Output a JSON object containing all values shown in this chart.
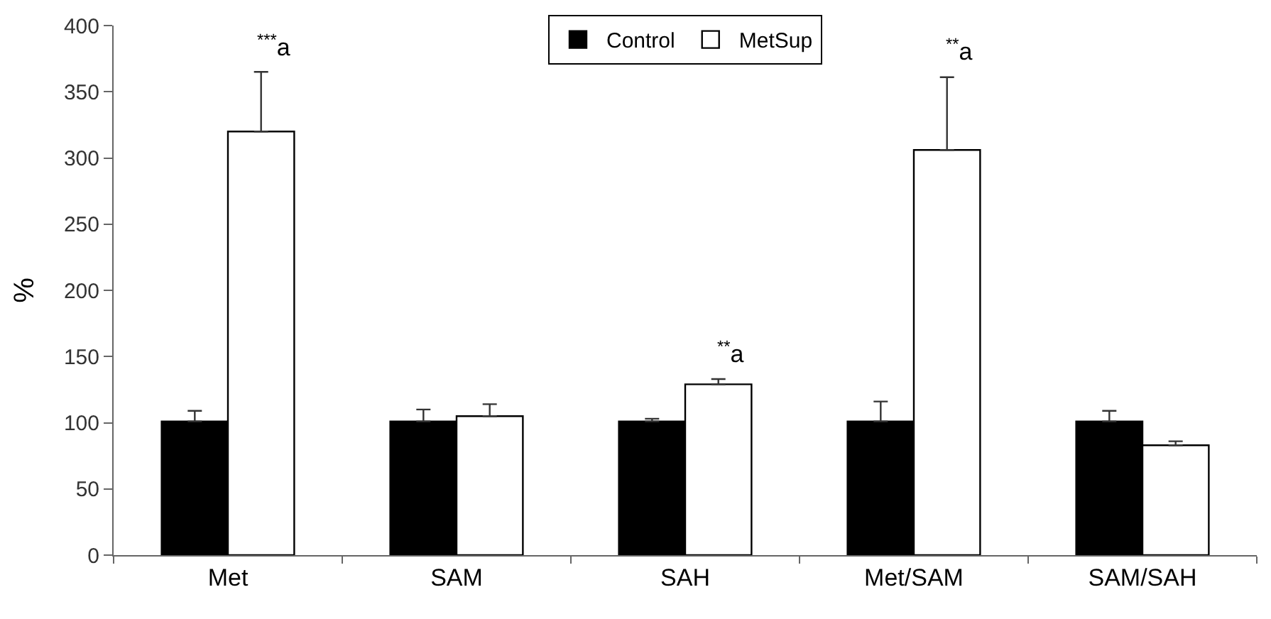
{
  "chart_data": {
    "type": "bar",
    "ylabel": "%",
    "categories": [
      "Met",
      "SAM",
      "SAH",
      "Met/SAM",
      "SAM/SAH"
    ],
    "series": [
      {
        "name": "Control",
        "color": "#000000",
        "values": [
          101,
          101,
          101,
          101,
          101
        ],
        "errors": [
          [
            101,
            109
          ],
          [
            101,
            110
          ],
          [
            101,
            103
          ],
          [
            101,
            116
          ],
          [
            101,
            109
          ]
        ]
      },
      {
        "name": "MetSup",
        "color": "#ffffff",
        "values": [
          320,
          105,
          129,
          306,
          83
        ],
        "errors": [
          [
            320,
            365
          ],
          [
            105,
            114
          ],
          [
            129,
            133
          ],
          [
            306,
            361
          ],
          [
            83,
            86
          ]
        ]
      }
    ],
    "annotations": [
      "$^{***}$a",
      "$^{**}$a",
      "$^{**}$a"
    ],
    "ylim": [
      0,
      400
    ],
    "yticks": [
      0,
      50,
      100,
      150,
      200,
      250,
      300,
      350,
      400
    ],
    "legend": "top"
  }
}
